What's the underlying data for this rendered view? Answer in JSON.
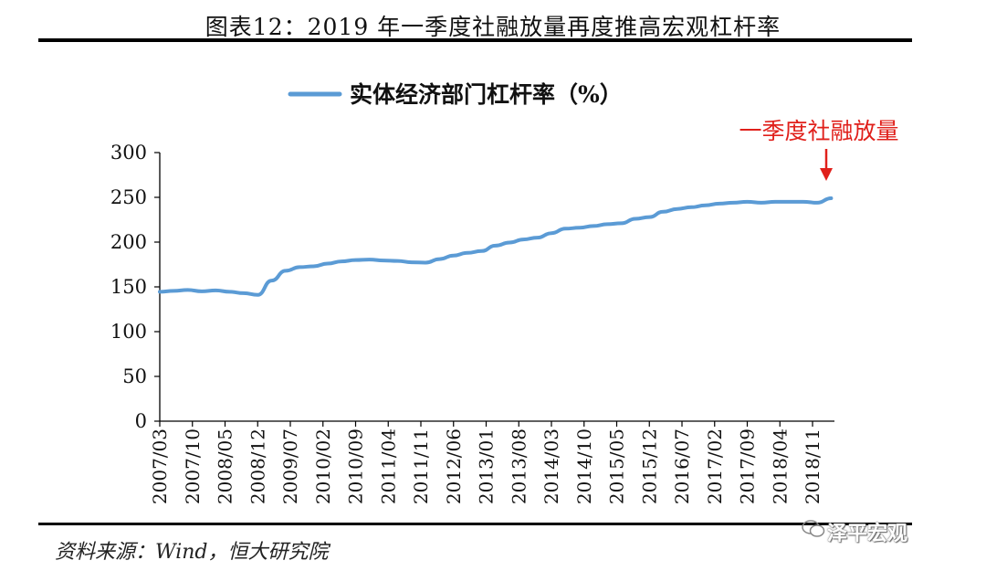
{
  "header": {
    "title": "图表12：2019 年一季度社融放量再度推高宏观杠杆率"
  },
  "footer": {
    "source": "资料来源：Wind，恒大研究院",
    "watermark": "泽平宏观"
  },
  "annotation": {
    "text": "一季度社融放量",
    "color": "#e0201b"
  },
  "chart_data": {
    "type": "line",
    "title": "",
    "xlabel": "",
    "ylabel": "",
    "ylim": [
      0,
      300
    ],
    "yticks": [
      0,
      50,
      100,
      150,
      200,
      250,
      300
    ],
    "grid": false,
    "legend_position": "top-center",
    "x_tick_labels": [
      "2007/03",
      "2007/10",
      "2008/05",
      "2008/12",
      "2009/07",
      "2010/02",
      "2010/09",
      "2011/04",
      "2011/11",
      "2012/06",
      "2013/01",
      "2013/08",
      "2014/03",
      "2014/10",
      "2015/05",
      "2015/12",
      "2016/07",
      "2017/02",
      "2017/09",
      "2018/04",
      "2018/11"
    ],
    "x": [
      "2007/03",
      "2007/06",
      "2007/09",
      "2007/12",
      "2008/03",
      "2008/06",
      "2008/09",
      "2008/12",
      "2009/03",
      "2009/06",
      "2009/09",
      "2009/12",
      "2010/03",
      "2010/06",
      "2010/09",
      "2010/12",
      "2011/03",
      "2011/06",
      "2011/09",
      "2011/12",
      "2012/03",
      "2012/06",
      "2012/09",
      "2012/12",
      "2013/03",
      "2013/06",
      "2013/09",
      "2013/12",
      "2014/03",
      "2014/06",
      "2014/09",
      "2014/12",
      "2015/03",
      "2015/06",
      "2015/09",
      "2015/12",
      "2016/03",
      "2016/06",
      "2016/09",
      "2016/12",
      "2017/03",
      "2017/06",
      "2017/09",
      "2017/12",
      "2018/03",
      "2018/06",
      "2018/09",
      "2018/12",
      "2019/03"
    ],
    "series": [
      {
        "name": "实体经济部门杠杆率（%）",
        "color": "#5b9bd5",
        "values": [
          144.5,
          145.5,
          146.5,
          145,
          146,
          144.5,
          143,
          141,
          157,
          168,
          172,
          173,
          176,
          178.5,
          180,
          180.5,
          179.5,
          179,
          177.5,
          177,
          181,
          185,
          188,
          190,
          196,
          199.5,
          203,
          205,
          210,
          215,
          216,
          218,
          220,
          221,
          226,
          228,
          234,
          237,
          239,
          241,
          243,
          244,
          245,
          244,
          245,
          245,
          245,
          244,
          249
        ]
      }
    ]
  }
}
